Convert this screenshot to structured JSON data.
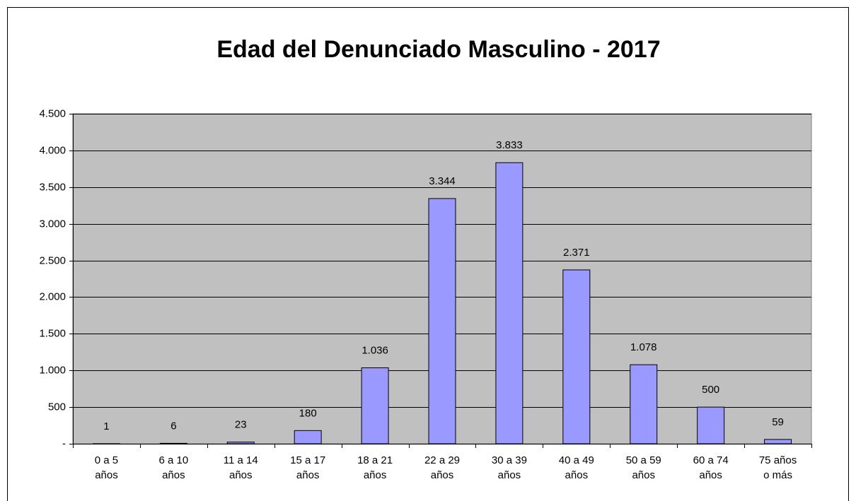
{
  "chart_data": {
    "type": "bar",
    "title": "Edad del Denunciado Masculino - 2017",
    "categories": [
      [
        "0 a 5",
        "años"
      ],
      [
        "6 a 10",
        "años"
      ],
      [
        "11 a 14",
        "años"
      ],
      [
        "15 a 17",
        "años"
      ],
      [
        "18 a 21",
        "años"
      ],
      [
        "22 a 29",
        "años"
      ],
      [
        "30 a 39",
        "años"
      ],
      [
        "40 a 49",
        "años"
      ],
      [
        "50 a 59",
        "años"
      ],
      [
        "60 a 74",
        "años"
      ],
      [
        "75 años",
        "o más"
      ]
    ],
    "values": [
      1,
      6,
      23,
      180,
      1036,
      3344,
      3833,
      2371,
      1078,
      500,
      59
    ],
    "value_labels": [
      "1",
      "6",
      "23",
      "180",
      "1.036",
      "3.344",
      "3.833",
      "2.371",
      "1.078",
      "500",
      "59"
    ],
    "color": "#9999ff",
    "ylim": [
      0,
      4500
    ],
    "yticks": [
      {
        "value": 0,
        "label": "-"
      },
      500,
      {
        "value": 1000,
        "label": "1.000"
      },
      {
        "value": 1500,
        "label": "1.500"
      },
      {
        "value": 2000,
        "label": "2.000"
      },
      {
        "value": 2500,
        "label": "2.500"
      },
      {
        "value": 3000,
        "label": "3.000"
      },
      {
        "value": 3500,
        "label": "3.500"
      },
      {
        "value": 4000,
        "label": "4.000"
      },
      {
        "value": 4500,
        "label": "4.500"
      }
    ],
    "grid": true
  }
}
